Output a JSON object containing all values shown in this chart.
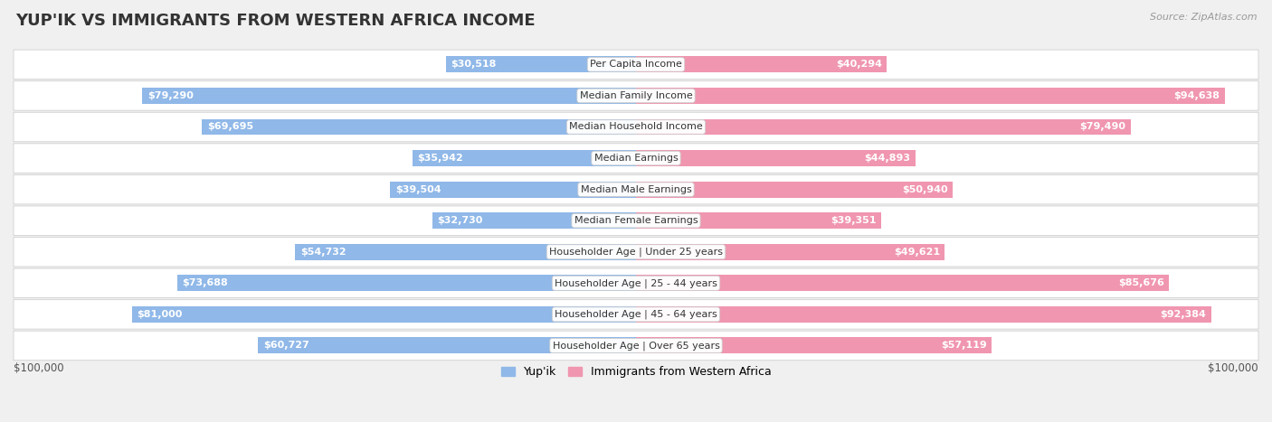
{
  "title": "YUP'IK VS IMMIGRANTS FROM WESTERN AFRICA INCOME",
  "source": "Source: ZipAtlas.com",
  "categories": [
    "Per Capita Income",
    "Median Family Income",
    "Median Household Income",
    "Median Earnings",
    "Median Male Earnings",
    "Median Female Earnings",
    "Householder Age | Under 25 years",
    "Householder Age | 25 - 44 years",
    "Householder Age | 45 - 64 years",
    "Householder Age | Over 65 years"
  ],
  "yupik_values": [
    30518,
    79290,
    69695,
    35942,
    39504,
    32730,
    54732,
    73688,
    81000,
    60727
  ],
  "western_africa_values": [
    40294,
    94638,
    79490,
    44893,
    50940,
    39351,
    49621,
    85676,
    92384,
    57119
  ],
  "yupik_labels": [
    "$30,518",
    "$79,290",
    "$69,695",
    "$35,942",
    "$39,504",
    "$32,730",
    "$54,732",
    "$73,688",
    "$81,000",
    "$60,727"
  ],
  "wa_labels": [
    "$40,294",
    "$94,638",
    "$79,490",
    "$44,893",
    "$50,940",
    "$39,351",
    "$49,621",
    "$85,676",
    "$92,384",
    "$57,119"
  ],
  "max_value": 100000,
  "yupik_color": "#90b8e8",
  "wa_color": "#f096b0",
  "yupik_inside_color": "#ffffff",
  "yupik_outside_color": "#555555",
  "wa_inside_color": "#ffffff",
  "wa_outside_color": "#555555",
  "bg_color": "#f0f0f0",
  "row_bg_color": "#ffffff",
  "legend_yupik": "Yup'ik",
  "legend_wa": "Immigrants from Western Africa",
  "xlabel_left": "$100,000",
  "xlabel_right": "$100,000",
  "title_fontsize": 13,
  "label_fontsize": 8,
  "category_fontsize": 8,
  "inside_threshold": 15000
}
